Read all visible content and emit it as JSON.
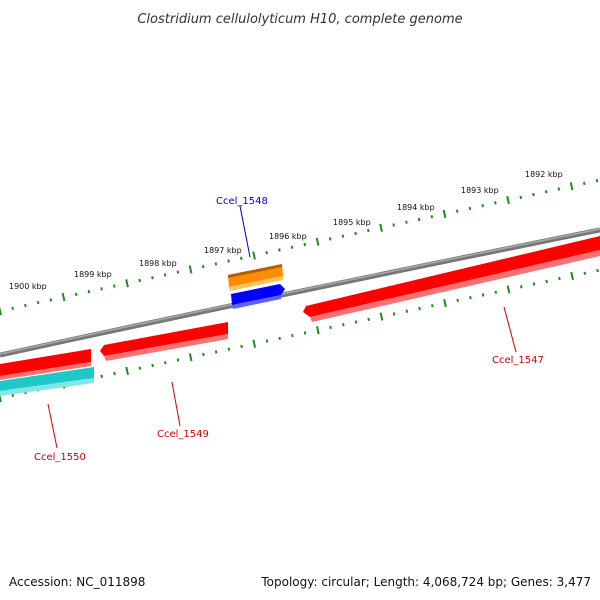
{
  "title": "Clostridium cellulolyticum H10, complete genome",
  "footer": {
    "accession": "Accession: NC_011898",
    "summary": "Topology: circular; Length: 4,068,724 bp; Genes: 3,477"
  },
  "colors": {
    "backbone": "#888888",
    "tick": "#1e8c1e",
    "forward_gene": "#ff0000",
    "reverse_gene": "#ff0000",
    "cyan_gene": "#1ec8c8",
    "orange_gene": "#ff8c00",
    "blue_gene": "#0000ff",
    "label_red": "#cc0000",
    "label_blue": "#0000cc"
  },
  "kbp_labels": [
    "1900 kbp",
    "1899 kbp",
    "1898 kbp",
    "1897 kbp",
    "1896 kbp",
    "1895 kbp",
    "1894 kbp",
    "1893 kbp",
    "1892 kbp"
  ],
  "genes": [
    {
      "id": "Ccel_1547",
      "color": "forward_gene",
      "label_color": "label_red"
    },
    {
      "id": "Ccel_1548",
      "color": "blue_gene",
      "label_color": "label_blue"
    },
    {
      "id": "Ccel_1549",
      "color": "forward_gene",
      "label_color": "label_red"
    },
    {
      "id": "Ccel_1550",
      "color": "cyan_gene",
      "label_color": "label_red"
    }
  ]
}
